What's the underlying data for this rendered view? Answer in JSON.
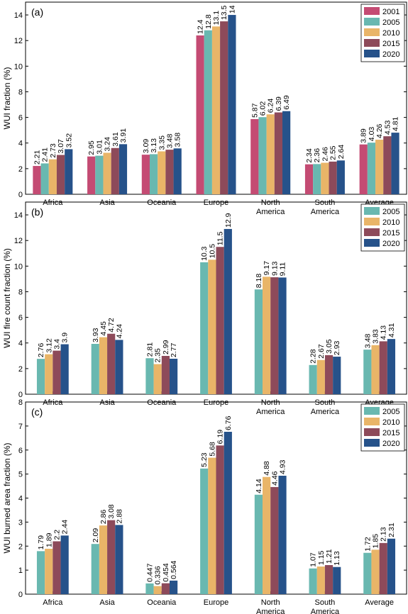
{
  "colors": {
    "2001": "#c44b73",
    "2005": "#69b8b0",
    "2010": "#e9b568",
    "2015": "#8d4a5a",
    "2020": "#26528a"
  },
  "chart_data": [
    {
      "type": "bar",
      "panel_label": "(a)",
      "ylabel": "WUI fraction (%)",
      "ylim": [
        0,
        15
      ],
      "yticks": [
        0,
        2,
        4,
        6,
        8,
        10,
        12,
        14
      ],
      "legend_position": "top-right",
      "categories": [
        "Africa",
        "Asia",
        "Oceania",
        "Europe",
        "North America",
        "South America",
        "Average"
      ],
      "series": [
        {
          "name": "2001",
          "values": [
            2.21,
            2.95,
            3.09,
            12.4,
            5.87,
            2.34,
            3.89
          ],
          "labels": [
            "2.21",
            "2.95",
            "3.09",
            "12.4",
            "5.87",
            "2.34",
            "3.89"
          ]
        },
        {
          "name": "2005",
          "values": [
            2.41,
            3.01,
            3.13,
            12.8,
            6.02,
            2.36,
            4.03
          ],
          "labels": [
            "2.41",
            "3.01",
            "3.13",
            "12.8",
            "6.02",
            "2.36",
            "4.03"
          ]
        },
        {
          "name": "2010",
          "values": [
            2.73,
            3.24,
            3.35,
            13.1,
            6.24,
            2.46,
            4.26
          ],
          "labels": [
            "2.73",
            "3.24",
            "3.35",
            "13.1",
            "6.24",
            "2.46",
            "4.26"
          ]
        },
        {
          "name": "2015",
          "values": [
            3.07,
            3.61,
            3.48,
            13.5,
            6.39,
            2.55,
            4.53
          ],
          "labels": [
            "3.07",
            "3.61",
            "3.48",
            "13.5",
            "6.39",
            "2.55",
            "4.53"
          ]
        },
        {
          "name": "2020",
          "values": [
            3.52,
            3.91,
            3.58,
            14.0,
            6.49,
            2.64,
            4.81
          ],
          "labels": [
            "3.52",
            "3.91",
            "3.58",
            "14",
            "6.49",
            "2.64",
            "4.81"
          ]
        }
      ]
    },
    {
      "type": "bar",
      "panel_label": "(b)",
      "ylabel": "WUI fire count fraction (%)",
      "ylim": [
        0,
        15
      ],
      "yticks": [
        0,
        2,
        4,
        6,
        8,
        10,
        12,
        14
      ],
      "legend_position": "top-right",
      "categories": [
        "Africa",
        "Asia",
        "Oceania",
        "Europe",
        "North America",
        "South America",
        "Average"
      ],
      "series": [
        {
          "name": "2005",
          "values": [
            2.76,
            3.93,
            2.81,
            10.3,
            8.18,
            2.28,
            3.48
          ],
          "labels": [
            "2.76",
            "3.93",
            "2.81",
            "10.3",
            "8.18",
            "2.28",
            "3.48"
          ]
        },
        {
          "name": "2010",
          "values": [
            3.12,
            4.45,
            2.35,
            10.5,
            9.17,
            2.67,
            3.83
          ],
          "labels": [
            "3.12",
            "4.45",
            "2.35",
            "10.5",
            "9.17",
            "2.67",
            "3.83"
          ]
        },
        {
          "name": "2015",
          "values": [
            3.4,
            4.72,
            2.99,
            11.5,
            9.13,
            3.05,
            4.13
          ],
          "labels": [
            "3.4",
            "4.72",
            "2.99",
            "11.5",
            "9.13",
            "3.05",
            "4.13"
          ]
        },
        {
          "name": "2020",
          "values": [
            3.9,
            4.24,
            2.77,
            12.9,
            9.11,
            2.93,
            4.31
          ],
          "labels": [
            "3.9",
            "4.24",
            "2.77",
            "12.9",
            "9.11",
            "2.93",
            "4.31"
          ]
        }
      ]
    },
    {
      "type": "bar",
      "panel_label": "(c)",
      "ylabel": "WUI burned area fraction (%)",
      "ylim": [
        0,
        8
      ],
      "yticks": [
        0,
        1,
        2,
        3,
        4,
        5,
        6,
        7,
        8
      ],
      "legend_position": "top-right",
      "categories": [
        "Africa",
        "Asia",
        "Oceania",
        "Europe",
        "North America",
        "South America",
        "Average"
      ],
      "series": [
        {
          "name": "2005",
          "values": [
            1.79,
            2.09,
            0.447,
            5.23,
            4.14,
            1.07,
            1.72
          ],
          "labels": [
            "1.79",
            "2.09",
            "0.447",
            "5.23",
            "4.14",
            "1.07",
            "1.72"
          ]
        },
        {
          "name": "2010",
          "values": [
            1.89,
            2.86,
            0.336,
            5.68,
            4.88,
            1.15,
            1.85
          ],
          "labels": [
            "1.89",
            "2.86",
            "0.336",
            "5.68",
            "4.88",
            "1.15",
            "1.85"
          ]
        },
        {
          "name": "2015",
          "values": [
            2.2,
            3.08,
            0.454,
            6.19,
            4.46,
            1.21,
            2.13
          ],
          "labels": [
            "2.2",
            "3.08",
            "0.454",
            "6.19",
            "4.46",
            "1.21",
            "2.13"
          ]
        },
        {
          "name": "2020",
          "values": [
            2.44,
            2.88,
            0.564,
            6.76,
            4.93,
            1.13,
            2.31
          ],
          "labels": [
            "2.44",
            "2.88",
            "0.564",
            "6.76",
            "4.93",
            "1.13",
            "2.31"
          ]
        }
      ]
    }
  ]
}
